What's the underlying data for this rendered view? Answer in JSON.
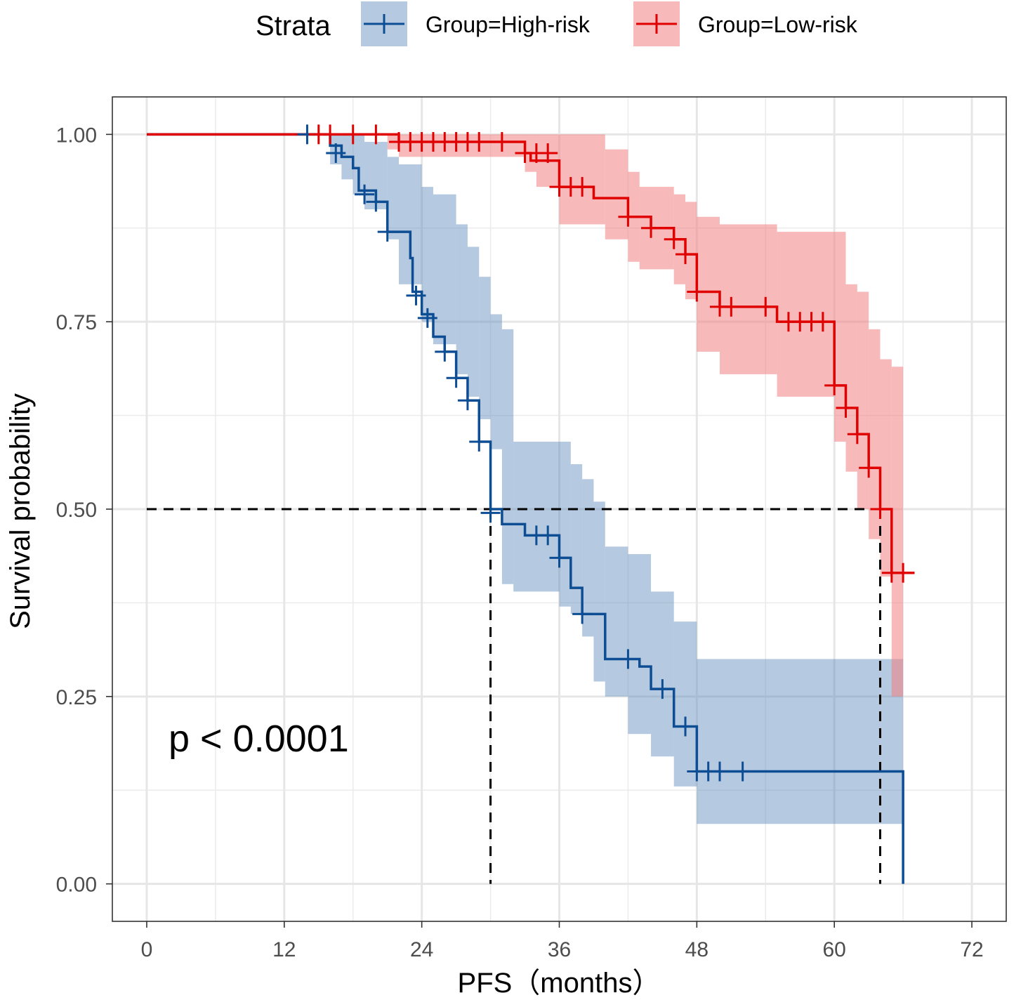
{
  "chart_data": {
    "type": "line",
    "subtype": "kaplan-meier",
    "xlabel": "PFS（months）",
    "ylabel": "Survival probability",
    "xlim": [
      -3,
      75
    ],
    "ylim": [
      -0.05,
      1.05
    ],
    "x_ticks": [
      0,
      12,
      24,
      36,
      48,
      60,
      72
    ],
    "x_tick_labels": [
      "0",
      "12",
      "24",
      "36",
      "48",
      "60",
      "72"
    ],
    "y_ticks": [
      0,
      0.25,
      0.5,
      0.75,
      1
    ],
    "y_tick_labels": [
      "0.00",
      "0.25",
      "0.50",
      "0.75",
      "1.00"
    ],
    "grid": true,
    "legend": {
      "title": "Strata",
      "position": "top"
    },
    "annotation": "p < 0.0001",
    "median_lines": [
      {
        "x": 30,
        "y": 0.5
      },
      {
        "x": 64,
        "y": 0.5
      }
    ],
    "series": [
      {
        "name": "Group=High-risk",
        "color": "#0d4d94",
        "band_color": "#5b88ba",
        "steps": [
          [
            0,
            1
          ],
          [
            15,
            1
          ],
          [
            16,
            0.985
          ],
          [
            17,
            0.97
          ],
          [
            18,
            0.955
          ],
          [
            18.5,
            0.925
          ],
          [
            20,
            0.91
          ],
          [
            21,
            0.87
          ],
          [
            23,
            0.835
          ],
          [
            23.2,
            0.79
          ],
          [
            24,
            0.76
          ],
          [
            25,
            0.73
          ],
          [
            26,
            0.71
          ],
          [
            27,
            0.675
          ],
          [
            28,
            0.645
          ],
          [
            29,
            0.59
          ],
          [
            30,
            0.5
          ],
          [
            31,
            0.48
          ],
          [
            33,
            0.465
          ],
          [
            36,
            0.435
          ],
          [
            37,
            0.395
          ],
          [
            38,
            0.36
          ],
          [
            40,
            0.3
          ],
          [
            43,
            0.29
          ],
          [
            44,
            0.26
          ],
          [
            46,
            0.21
          ],
          [
            48,
            0.15
          ],
          [
            66,
            0.15
          ],
          [
            66,
            0
          ]
        ],
        "band": [
          [
            15,
            1,
            1
          ],
          [
            16,
            0.96,
            1
          ],
          [
            17,
            0.94,
            1
          ],
          [
            18,
            0.92,
            1
          ],
          [
            19,
            0.9,
            0.99
          ],
          [
            21,
            0.86,
            0.97
          ],
          [
            22,
            0.8,
            0.96
          ],
          [
            24,
            0.75,
            0.93
          ],
          [
            25,
            0.72,
            0.92
          ],
          [
            27,
            0.68,
            0.88
          ],
          [
            28,
            0.65,
            0.85
          ],
          [
            29,
            0.62,
            0.81
          ],
          [
            30,
            0.58,
            0.76
          ],
          [
            31,
            0.4,
            0.74
          ],
          [
            32,
            0.39,
            0.59
          ],
          [
            36,
            0.37,
            0.59
          ],
          [
            37,
            0.36,
            0.56
          ],
          [
            38,
            0.33,
            0.54
          ],
          [
            39,
            0.27,
            0.51
          ],
          [
            40,
            0.25,
            0.45
          ],
          [
            42,
            0.2,
            0.44
          ],
          [
            44,
            0.17,
            0.39
          ],
          [
            46,
            0.13,
            0.35
          ],
          [
            48,
            0.08,
            0.3
          ],
          [
            66,
            0.08,
            0.3
          ]
        ],
        "censor_marks": [
          [
            14,
            1
          ],
          [
            16.5,
            0.975
          ],
          [
            19,
            0.92
          ],
          [
            20,
            0.91
          ],
          [
            21,
            0.87
          ],
          [
            23.5,
            0.785
          ],
          [
            24.5,
            0.755
          ],
          [
            26,
            0.71
          ],
          [
            27,
            0.675
          ],
          [
            28,
            0.645
          ],
          [
            29,
            0.59
          ],
          [
            30,
            0.495
          ],
          [
            34,
            0.465
          ],
          [
            35,
            0.465
          ],
          [
            36,
            0.435
          ],
          [
            38,
            0.36
          ],
          [
            42,
            0.3
          ],
          [
            45,
            0.26
          ],
          [
            47,
            0.21
          ],
          [
            48,
            0.15
          ],
          [
            49,
            0.15
          ],
          [
            50,
            0.15
          ],
          [
            52,
            0.15
          ]
        ]
      },
      {
        "name": "Group=Low-risk",
        "color": "#e00000",
        "band_color": "#f08080",
        "steps": [
          [
            0,
            1
          ],
          [
            21,
            1
          ],
          [
            22,
            0.99
          ],
          [
            32,
            0.99
          ],
          [
            33,
            0.975
          ],
          [
            33.5,
            0.965
          ],
          [
            36,
            0.93
          ],
          [
            39,
            0.915
          ],
          [
            42,
            0.89
          ],
          [
            44,
            0.875
          ],
          [
            46,
            0.86
          ],
          [
            47,
            0.84
          ],
          [
            48,
            0.79
          ],
          [
            50,
            0.77
          ],
          [
            55,
            0.75
          ],
          [
            60,
            0.665
          ],
          [
            61,
            0.635
          ],
          [
            62,
            0.6
          ],
          [
            63,
            0.555
          ],
          [
            64,
            0.5
          ],
          [
            65,
            0.415
          ],
          [
            67,
            0.415
          ]
        ],
        "band": [
          [
            21,
            0.98,
            1
          ],
          [
            22,
            0.97,
            1
          ],
          [
            33,
            0.95,
            1
          ],
          [
            34,
            0.93,
            1
          ],
          [
            36,
            0.88,
            1
          ],
          [
            40,
            0.86,
            0.98
          ],
          [
            42,
            0.83,
            0.95
          ],
          [
            43,
            0.82,
            0.93
          ],
          [
            46,
            0.8,
            0.92
          ],
          [
            47,
            0.78,
            0.91
          ],
          [
            48,
            0.71,
            0.89
          ],
          [
            50,
            0.68,
            0.88
          ],
          [
            55,
            0.65,
            0.87
          ],
          [
            60,
            0.59,
            0.87
          ],
          [
            61,
            0.55,
            0.8
          ],
          [
            62,
            0.5,
            0.79
          ],
          [
            63,
            0.46,
            0.74
          ],
          [
            64,
            0.41,
            0.7
          ],
          [
            65,
            0.25,
            0.69
          ],
          [
            66,
            0.25,
            0.69
          ]
        ],
        "censor_marks": [
          [
            15,
            1
          ],
          [
            16,
            1
          ],
          [
            18,
            1
          ],
          [
            20,
            1
          ],
          [
            22,
            0.99
          ],
          [
            23,
            0.99
          ],
          [
            24,
            0.99
          ],
          [
            25,
            0.99
          ],
          [
            26,
            0.99
          ],
          [
            27,
            0.99
          ],
          [
            28,
            0.99
          ],
          [
            29,
            0.99
          ],
          [
            31,
            0.99
          ],
          [
            33,
            0.975
          ],
          [
            34,
            0.975
          ],
          [
            35,
            0.975
          ],
          [
            36,
            0.93
          ],
          [
            37,
            0.93
          ],
          [
            38,
            0.93
          ],
          [
            42,
            0.89
          ],
          [
            44,
            0.875
          ],
          [
            46,
            0.86
          ],
          [
            47,
            0.84
          ],
          [
            48,
            0.79
          ],
          [
            50,
            0.77
          ],
          [
            51,
            0.77
          ],
          [
            54,
            0.77
          ],
          [
            56,
            0.75
          ],
          [
            57,
            0.75
          ],
          [
            58,
            0.75
          ],
          [
            59,
            0.75
          ],
          [
            60,
            0.665
          ],
          [
            61,
            0.635
          ],
          [
            62,
            0.6
          ],
          [
            63,
            0.555
          ],
          [
            64,
            0.5
          ],
          [
            65,
            0.415
          ],
          [
            66,
            0.415
          ]
        ]
      }
    ]
  }
}
